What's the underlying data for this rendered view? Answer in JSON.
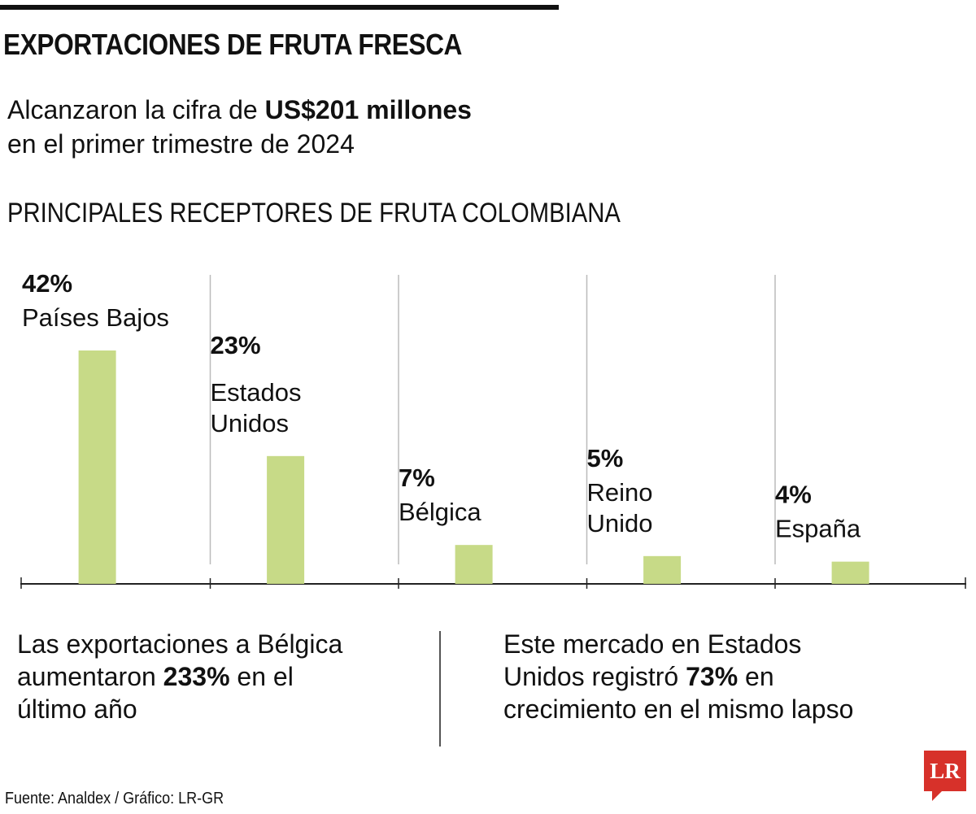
{
  "header": {
    "title": "EXPORTACIONES DE FRUTA FRESCA",
    "lead_before": "Alcanzaron la cifra de ",
    "lead_amount": "US$201 millones",
    "lead_after": "en el primer trimestre de 2024",
    "subtitle": "PRINCIPALES RECEPTORES DE FRUTA COLOMBIANA"
  },
  "chart_data": {
    "type": "bar",
    "title": "PRINCIPALES RECEPTORES DE FRUTA COLOMBIANA",
    "unit": "%",
    "categories": [
      "Países Bajos",
      "Estados Unidos",
      "Bélgica",
      "Reino Unido",
      "España"
    ],
    "values": [
      42,
      23,
      7,
      5,
      4
    ],
    "value_labels": [
      "42%",
      "23%",
      "7%",
      "5%",
      "4%"
    ],
    "name_lines": [
      [
        "Países Bajos"
      ],
      [
        "Estados",
        "Unidos"
      ],
      [
        "Bélgica"
      ],
      [
        "Reino",
        "Unido"
      ],
      [
        "España"
      ]
    ],
    "ylim": [
      0,
      42
    ],
    "xlabel": "",
    "ylabel": "",
    "grid": false,
    "bar_color": "#c7da87"
  },
  "notes": {
    "left_line1": "Las exportaciones a Bélgica",
    "left_line2_before": "aumentaron ",
    "left_line2_bold": "233%",
    "left_line2_after": " en el",
    "left_line3": "último año",
    "right_line1": "Este mercado en Estados",
    "right_line2_before": "Unidos registró ",
    "right_line2_bold": "73%",
    "right_line2_after": " en",
    "right_line3": "crecimiento en el mismo lapso"
  },
  "footer": {
    "source": "Fuente: Analdex / Gráfico: LR-GR",
    "logo_text": "LR",
    "logo_color": "#d7312a"
  }
}
